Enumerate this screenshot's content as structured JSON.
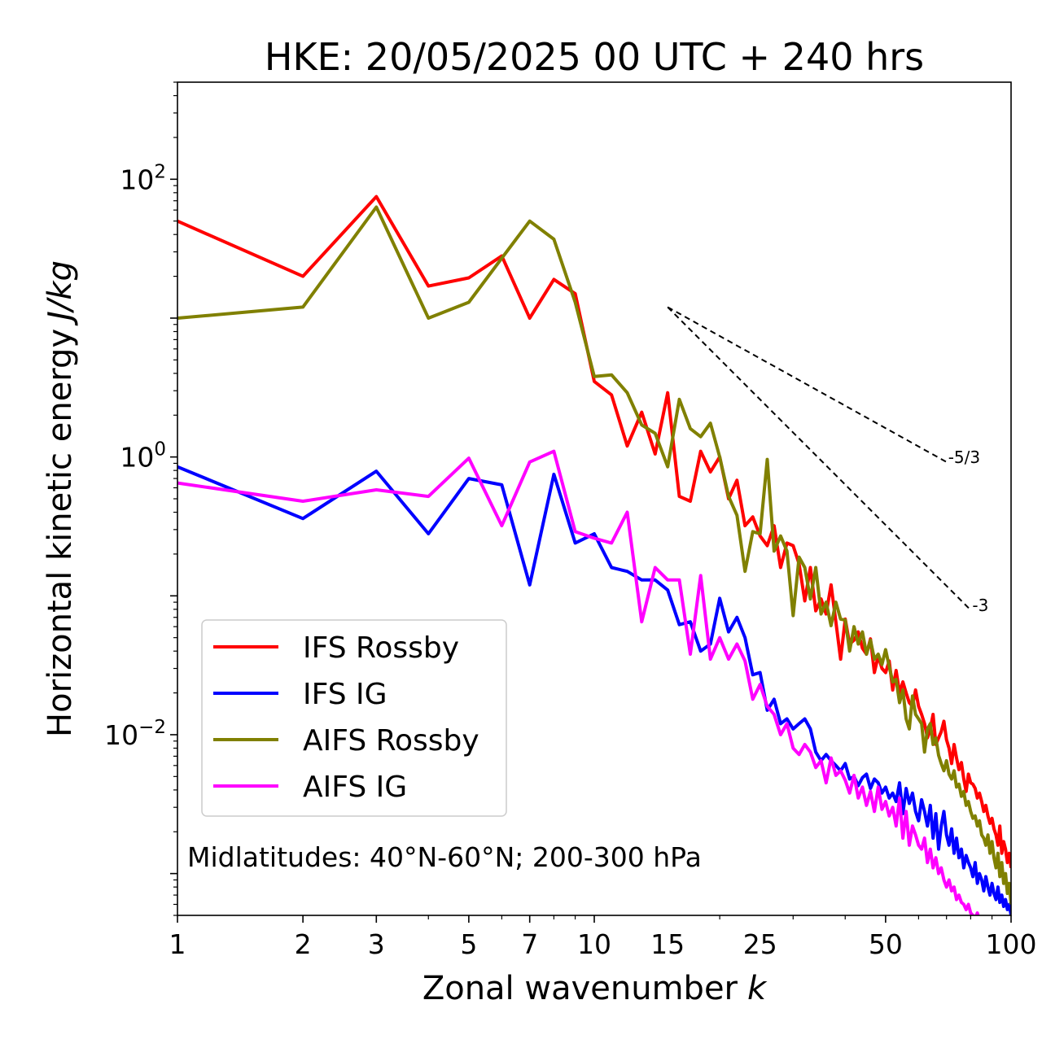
{
  "chart_data": {
    "type": "line",
    "title": "HKE: 20/05/2025 00 UTC + 240 hrs",
    "xlabel": "Zonal wavenumber",
    "xlabel_var": "k",
    "ylabel": "Horizontal kinetic energy",
    "ylabel_unit": "J/kg",
    "xscale": "log",
    "yscale": "log",
    "xlim": [
      1,
      100
    ],
    "ylim": [
      0.0005,
      500
    ],
    "x_ticks": [
      1,
      2,
      3,
      5,
      7,
      10,
      15,
      25,
      50,
      100
    ],
    "x_tick_labels": [
      "1",
      "2",
      "3",
      "5",
      "7",
      "10",
      "15",
      "25",
      "50",
      "100"
    ],
    "y_ticks": [
      0.01,
      1,
      100
    ],
    "y_tick_labels": [
      {
        "base": "10",
        "exp": "−2"
      },
      {
        "base": "10",
        "exp": "0"
      },
      {
        "base": "10",
        "exp": "2"
      }
    ],
    "legend_position": "lower-left",
    "annotation": "Midlatitudes: 40°N-60°N; 200-300 hPa",
    "reference_slopes": [
      {
        "label": "-5/3",
        "x": [
          15,
          70
        ],
        "y": [
          12.0,
          0.92
        ]
      },
      {
        "label": "-3",
        "x": [
          15,
          80
        ],
        "y": [
          12.0,
          0.079
        ]
      }
    ],
    "series": [
      {
        "name": "IFS Rossby",
        "color": "#ff0000",
        "x": [
          1,
          2,
          3,
          4,
          5,
          6,
          7,
          8,
          9,
          10,
          11,
          12,
          13,
          14,
          15,
          16,
          17,
          18,
          19,
          20,
          21,
          22,
          23,
          24,
          25,
          26,
          27,
          28,
          29,
          30,
          31,
          32,
          33,
          34,
          35,
          36,
          37,
          38,
          39,
          40,
          41,
          42,
          43,
          44,
          45,
          46,
          47,
          48,
          49,
          50,
          51,
          52,
          53,
          54,
          55,
          56,
          57,
          58,
          59,
          60,
          61,
          62,
          63,
          64,
          65,
          66,
          67,
          68,
          69,
          70,
          71,
          72,
          73,
          74,
          75,
          76,
          77,
          78,
          79,
          80,
          81,
          82,
          83,
          84,
          85,
          86,
          87,
          88,
          89,
          90,
          91,
          92,
          93,
          94,
          95,
          96,
          97,
          98,
          99,
          100
        ],
        "y": [
          50,
          20,
          75,
          17,
          19.5,
          28,
          10,
          19,
          15,
          3.5,
          2.8,
          1.2,
          2.1,
          1.05,
          2.9,
          0.52,
          0.48,
          1.1,
          0.78,
          1.0,
          0.5,
          0.68,
          0.32,
          0.37,
          0.27,
          0.23,
          0.32,
          0.16,
          0.24,
          0.23,
          0.17,
          0.092,
          0.16,
          0.078,
          0.095,
          0.074,
          0.12,
          0.065,
          0.035,
          0.068,
          0.045,
          0.048,
          0.055,
          0.042,
          0.038,
          0.049,
          0.028,
          0.037,
          0.03,
          0.028,
          0.034,
          0.021,
          0.029,
          0.02,
          0.024,
          0.02,
          0.017,
          0.016,
          0.021,
          0.016,
          0.014,
          0.012,
          0.0095,
          0.011,
          0.014,
          0.0085,
          0.0095,
          0.0105,
          0.0125,
          0.0092,
          0.008,
          0.0062,
          0.0085,
          0.0068,
          0.0056,
          0.0063,
          0.0048,
          0.0039,
          0.0052,
          0.0045,
          0.0044,
          0.0041,
          0.0035,
          0.0038,
          0.0033,
          0.0028,
          0.0031,
          0.0026,
          0.0023,
          0.0025,
          0.0021,
          0.0019,
          0.0016,
          0.0022,
          0.0014,
          0.0017,
          0.0015,
          0.0012,
          0.0014,
          0.0011
        ]
      },
      {
        "name": "IFS IG",
        "color": "#0000ff",
        "x": [
          1,
          2,
          3,
          4,
          5,
          6,
          7,
          8,
          9,
          10,
          11,
          12,
          13,
          14,
          15,
          16,
          17,
          18,
          19,
          20,
          21,
          22,
          23,
          24,
          25,
          26,
          27,
          28,
          29,
          30,
          31,
          32,
          33,
          34,
          35,
          36,
          37,
          38,
          39,
          40,
          41,
          42,
          43,
          44,
          45,
          46,
          47,
          48,
          49,
          50,
          51,
          52,
          53,
          54,
          55,
          56,
          57,
          58,
          59,
          60,
          61,
          62,
          63,
          64,
          65,
          66,
          67,
          68,
          69,
          70,
          71,
          72,
          73,
          74,
          75,
          76,
          77,
          78,
          79,
          80,
          81,
          82,
          83,
          84,
          85,
          86,
          87,
          88,
          89,
          90,
          91,
          92,
          93,
          94,
          95,
          96,
          97,
          98,
          99,
          100
        ],
        "y": [
          0.85,
          0.36,
          0.79,
          0.28,
          0.7,
          0.63,
          0.12,
          0.75,
          0.24,
          0.28,
          0.16,
          0.15,
          0.13,
          0.13,
          0.11,
          0.062,
          0.065,
          0.04,
          0.045,
          0.096,
          0.055,
          0.07,
          0.05,
          0.027,
          0.028,
          0.015,
          0.018,
          0.012,
          0.013,
          0.011,
          0.012,
          0.013,
          0.011,
          0.0075,
          0.0065,
          0.0072,
          0.0065,
          0.006,
          0.0055,
          0.0062,
          0.0048,
          0.005,
          0.0043,
          0.0049,
          0.0052,
          0.0041,
          0.0048,
          0.0045,
          0.0038,
          0.0042,
          0.0035,
          0.0038,
          0.0033,
          0.0045,
          0.0027,
          0.0041,
          0.0032,
          0.0038,
          0.0028,
          0.0024,
          0.0034,
          0.0028,
          0.0022,
          0.0031,
          0.0018,
          0.0027,
          0.0015,
          0.0022,
          0.0028,
          0.0019,
          0.0016,
          0.0021,
          0.0014,
          0.0018,
          0.0013,
          0.0015,
          0.0011,
          0.00135,
          0.0012,
          0.0011,
          0.00095,
          0.0012,
          0.00085,
          0.001,
          0.0009,
          0.00075,
          0.00095,
          0.0008,
          0.0007,
          0.00085,
          0.00072,
          0.00065,
          0.0008,
          0.00062,
          0.0007,
          0.00058,
          0.00065,
          0.00055,
          0.0006,
          0.0005
        ]
      },
      {
        "name": "AIFS Rossby",
        "color": "#808000",
        "x": [
          1,
          2,
          3,
          4,
          5,
          6,
          7,
          8,
          9,
          10,
          11,
          12,
          13,
          14,
          15,
          16,
          17,
          18,
          19,
          20,
          21,
          22,
          23,
          24,
          25,
          26,
          27,
          28,
          29,
          30,
          31,
          32,
          33,
          34,
          35,
          36,
          37,
          38,
          39,
          40,
          41,
          42,
          43,
          44,
          45,
          46,
          47,
          48,
          49,
          50,
          51,
          52,
          53,
          54,
          55,
          56,
          57,
          58,
          59,
          60,
          61,
          62,
          63,
          64,
          65,
          66,
          67,
          68,
          69,
          70,
          71,
          72,
          73,
          74,
          75,
          76,
          77,
          78,
          79,
          80,
          81,
          82,
          83,
          84,
          85,
          86,
          87,
          88,
          89,
          90,
          91,
          92,
          93,
          94,
          95,
          96,
          97,
          98,
          99,
          100
        ],
        "y": [
          10,
          12,
          63,
          10,
          13,
          27,
          50,
          37,
          13,
          3.8,
          3.9,
          2.9,
          1.7,
          1.48,
          0.85,
          2.6,
          1.6,
          1.4,
          1.75,
          1.0,
          0.52,
          0.38,
          0.15,
          0.29,
          0.28,
          0.96,
          0.21,
          0.27,
          0.21,
          0.072,
          0.19,
          0.16,
          0.095,
          0.16,
          0.074,
          0.09,
          0.061,
          0.09,
          0.068,
          0.067,
          0.04,
          0.06,
          0.045,
          0.055,
          0.038,
          0.048,
          0.035,
          0.038,
          0.032,
          0.041,
          0.031,
          0.024,
          0.025,
          0.017,
          0.021,
          0.013,
          0.011,
          0.019,
          0.014,
          0.013,
          0.012,
          0.0075,
          0.011,
          0.012,
          0.0085,
          0.0095,
          0.0071,
          0.0062,
          0.0055,
          0.0065,
          0.0052,
          0.0048,
          0.0055,
          0.0042,
          0.0044,
          0.0036,
          0.0039,
          0.0031,
          0.0033,
          0.0028,
          0.0025,
          0.0026,
          0.0022,
          0.0024,
          0.0019,
          0.0018,
          0.0016,
          0.0019,
          0.0014,
          0.0017,
          0.0013,
          0.0011,
          0.0014,
          0.00095,
          0.0012,
          0.00085,
          0.001,
          0.00072,
          0.00085,
          0.0006
        ]
      },
      {
        "name": "AIFS IG",
        "color": "#ff00ff",
        "x": [
          1,
          2,
          3,
          4,
          5,
          6,
          7,
          8,
          9,
          10,
          11,
          12,
          13,
          14,
          15,
          16,
          17,
          18,
          19,
          20,
          21,
          22,
          23,
          24,
          25,
          26,
          27,
          28,
          29,
          30,
          31,
          32,
          33,
          34,
          35,
          36,
          37,
          38,
          39,
          40,
          41,
          42,
          43,
          44,
          45,
          46,
          47,
          48,
          49,
          50,
          51,
          52,
          53,
          54,
          55,
          56,
          57,
          58,
          59,
          60,
          61,
          62,
          63,
          64,
          65,
          66,
          67,
          68,
          69,
          70,
          71,
          72,
          73,
          74,
          75,
          76,
          77,
          78,
          79,
          80,
          81,
          82,
          83,
          84,
          85,
          86,
          87,
          88,
          89,
          90,
          91,
          92,
          93,
          94,
          95,
          96,
          97,
          98,
          99,
          100
        ],
        "y": [
          0.65,
          0.48,
          0.58,
          0.52,
          0.98,
          0.32,
          0.92,
          1.1,
          0.29,
          0.26,
          0.24,
          0.4,
          0.065,
          0.16,
          0.13,
          0.13,
          0.038,
          0.14,
          0.035,
          0.05,
          0.035,
          0.045,
          0.034,
          0.018,
          0.023,
          0.016,
          0.014,
          0.01,
          0.012,
          0.008,
          0.0072,
          0.0085,
          0.0075,
          0.0058,
          0.0065,
          0.0045,
          0.0068,
          0.0051,
          0.0055,
          0.0047,
          0.0038,
          0.0051,
          0.0035,
          0.0042,
          0.0031,
          0.0039,
          0.0028,
          0.0042,
          0.0029,
          0.0033,
          0.0026,
          0.003,
          0.0022,
          0.0035,
          0.0018,
          0.0028,
          0.0016,
          0.0022,
          0.0019,
          0.0016,
          0.0015,
          0.0018,
          0.0012,
          0.0015,
          0.0011,
          0.0013,
          0.001,
          0.0011,
          0.0009,
          0.0008,
          0.0009,
          0.00075,
          0.0008,
          0.00065,
          0.0007,
          0.00062,
          0.0006,
          0.00055,
          0.0006,
          0.00052,
          0.0005,
          0.00048,
          0.00052,
          0.00046,
          0.00045,
          0.00042,
          0.0004,
          0.00041,
          0.00038,
          0.00036,
          0.00037,
          0.00034,
          0.00033,
          0.00032,
          0.00031,
          0.0003,
          0.00029,
          0.00028,
          0.00027,
          0.00026
        ]
      }
    ]
  }
}
